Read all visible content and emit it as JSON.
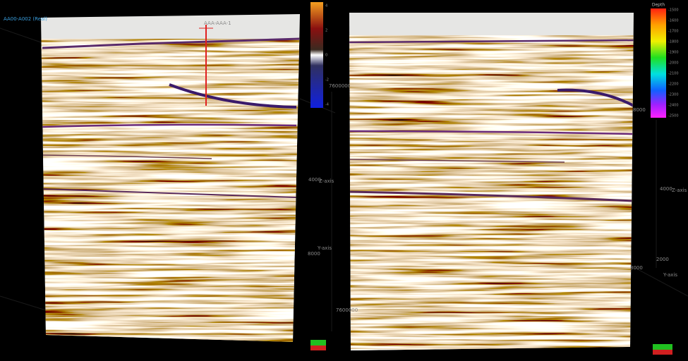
{
  "viewports": [
    {
      "layer_label": "AA00-A002 (Real)",
      "well_label": "AAA-AAA-1",
      "colorbar": {
        "ticks": [
          "4",
          "2",
          "0",
          "-2",
          "-4"
        ]
      },
      "axis_labels": [
        "7600000",
        "Z-axis",
        "4000",
        "Y-axis",
        "8000"
      ]
    },
    {
      "colorbar": {
        "title": "Depth",
        "ticks": [
          "-1500",
          "-1600",
          "-1700",
          "-1800",
          "-1900",
          "-2000",
          "-2100",
          "-2200",
          "-2300",
          "-2400",
          "-2500"
        ]
      },
      "axis_labels": [
        "8000",
        "Z-axis",
        "4000",
        "2000",
        "Y-axis",
        "8000",
        "7600000"
      ]
    }
  ]
}
